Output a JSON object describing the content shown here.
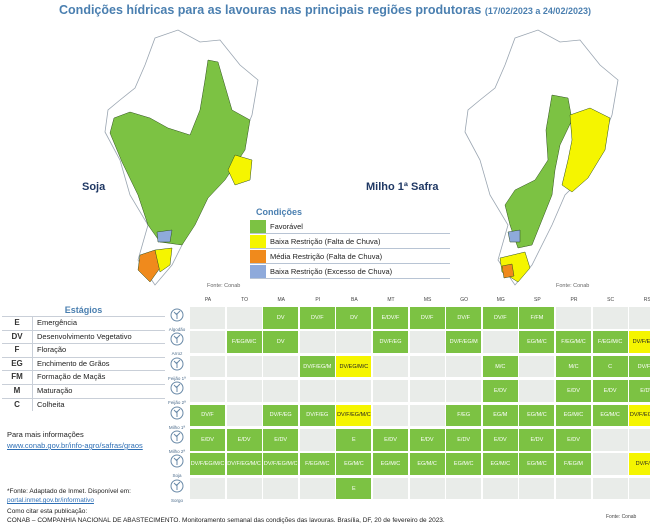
{
  "title": {
    "main": "Condições hídricas para as lavouras nas principais regiões produtoras",
    "period": "(17/02/2023 a 24/02/2023)"
  },
  "maps": {
    "left_label": "Soja",
    "right_label": "Milho 1ª Safra",
    "fonte_left": "Fonte: Conab",
    "fonte_right": "Fonte: Conab"
  },
  "legend": {
    "title": "Condições",
    "items": [
      {
        "label": "Favorável",
        "color": "#7cc243"
      },
      {
        "label": "Baixa Restrição (Falta de Chuva)",
        "color": "#f5f500"
      },
      {
        "label": "Média Restrição (Falta de Chuva)",
        "color": "#f08a1c"
      },
      {
        "label": "Baixa Restrição (Excesso de Chuva)",
        "color": "#8eaadb"
      }
    ]
  },
  "estagios": {
    "title": "Estágios",
    "items": [
      {
        "code": "E",
        "name": "Emergência"
      },
      {
        "code": "DV",
        "name": "Desenvolvimento Vegetativo"
      },
      {
        "code": "F",
        "name": "Floração"
      },
      {
        "code": "EG",
        "name": "Enchimento de Grãos"
      },
      {
        "code": "FM",
        "name": "Formação de Maçãs"
      },
      {
        "code": "M",
        "name": "Maturação"
      },
      {
        "code": "C",
        "name": "Colheita"
      }
    ]
  },
  "info": {
    "title": "Para mais informações",
    "link": "www.conab.gov.br/info-agro/safras/graos"
  },
  "notes": {
    "fonte_line": "*Fonte: Adaptado de Inmet. Disponível em:",
    "fonte_link": "portal.inmet.gov.br/informativo",
    "cite": "Como citar esta publicação:",
    "footer": "CONAB – COMPANHIA NACIONAL DE ABASTECIMENTO. Monitoramento semanal das condições das lavouras. Brasília, DF, 20 de fevereiro de 2023.",
    "fonte_bottom": "Fonte: Conab"
  },
  "table": {
    "states": [
      "PA",
      "TO",
      "MA",
      "PI",
      "BA",
      "MT",
      "MS",
      "GO",
      "MG",
      "SP",
      "PR",
      "SC",
      "RS"
    ],
    "rows": [
      {
        "crop": "Algodão",
        "cells": [
          [
            "",
            "e"
          ],
          [
            "",
            "e"
          ],
          [
            "DV",
            "g"
          ],
          [
            "DV/F",
            "g"
          ],
          [
            "DV",
            "g"
          ],
          [
            "E/DV/F",
            "g"
          ],
          [
            "DV/F",
            "g"
          ],
          [
            "DV/F",
            "g"
          ],
          [
            "DV/F",
            "g"
          ],
          [
            "F/FM",
            "g"
          ],
          [
            "",
            "e"
          ],
          [
            "",
            "e"
          ],
          [
            "",
            "e"
          ]
        ]
      },
      {
        "crop": "Arroz",
        "cells": [
          [
            "",
            "e"
          ],
          [
            "F/EG/M/C",
            "g"
          ],
          [
            "DV",
            "g"
          ],
          [
            "",
            "e"
          ],
          [
            "",
            "e"
          ],
          [
            "DV/F/EG",
            "g"
          ],
          [
            "",
            "e"
          ],
          [
            "DV/F/EG/M",
            "g"
          ],
          [
            "",
            "e"
          ],
          [
            "EG/M/C",
            "g"
          ],
          [
            "F/EG/M/C",
            "g"
          ],
          [
            "F/EG/M/C",
            "g"
          ],
          [
            "DV/F/EG/M",
            "y"
          ]
        ]
      },
      {
        "crop": "Feijão 1ª",
        "cells": [
          [
            "",
            "e"
          ],
          [
            "",
            "e"
          ],
          [
            "",
            "e"
          ],
          [
            "DV/F/EG/M",
            "g"
          ],
          [
            "DV/EG/M/C",
            "y"
          ],
          [
            "",
            "e"
          ],
          [
            "",
            "e"
          ],
          [
            "",
            "e"
          ],
          [
            "M/C",
            "g"
          ],
          [
            "",
            "e"
          ],
          [
            "M/C",
            "g"
          ],
          [
            "C",
            "g"
          ],
          [
            "DV/F/C",
            "g"
          ]
        ]
      },
      {
        "crop": "Feijão 2ª",
        "cells": [
          [
            "",
            "e"
          ],
          [
            "",
            "e"
          ],
          [
            "",
            "e"
          ],
          [
            "",
            "e"
          ],
          [
            "",
            "e"
          ],
          [
            "",
            "e"
          ],
          [
            "",
            "e"
          ],
          [
            "",
            "e"
          ],
          [
            "E/DV",
            "g"
          ],
          [
            "",
            "e"
          ],
          [
            "E/DV",
            "g"
          ],
          [
            "E/DV",
            "g"
          ],
          [
            "E/DV",
            "g"
          ]
        ]
      },
      {
        "crop": "Milho 1ª",
        "cells": [
          [
            "DV/F",
            "g"
          ],
          [
            "",
            "e"
          ],
          [
            "DV/F/EG",
            "g"
          ],
          [
            "DV/F/EG",
            "g"
          ],
          [
            "DV/F/EG/M/C",
            "y"
          ],
          [
            "",
            "e"
          ],
          [
            "",
            "e"
          ],
          [
            "F/EG",
            "g"
          ],
          [
            "EG/M",
            "g"
          ],
          [
            "EG/M/C",
            "g"
          ],
          [
            "EG/M/C",
            "g"
          ],
          [
            "EG/M/C",
            "g"
          ],
          [
            "DV/F/EG/M/C",
            "y"
          ]
        ]
      },
      {
        "crop": "Milho 2ª",
        "cells": [
          [
            "E/DV",
            "g"
          ],
          [
            "E/DV",
            "g"
          ],
          [
            "E/DV",
            "g"
          ],
          [
            "",
            "e"
          ],
          [
            "E",
            "g"
          ],
          [
            "E/DV",
            "g"
          ],
          [
            "E/DV",
            "g"
          ],
          [
            "E/DV",
            "g"
          ],
          [
            "E/DV",
            "g"
          ],
          [
            "E/DV",
            "g"
          ],
          [
            "E/DV",
            "g"
          ],
          [
            "",
            "e"
          ],
          [
            "",
            "e"
          ]
        ]
      },
      {
        "crop": "Soja",
        "cells": [
          [
            "DV/F/EG/M/C",
            "g"
          ],
          [
            "DV/F/EG/M/C",
            "g"
          ],
          [
            "DV/F/EG/M/C",
            "g"
          ],
          [
            "F/EG/M/C",
            "g"
          ],
          [
            "EG/M/C",
            "g"
          ],
          [
            "EG/M/C",
            "g"
          ],
          [
            "EG/M/C",
            "g"
          ],
          [
            "EG/M/C",
            "g"
          ],
          [
            "EG/M/C",
            "g"
          ],
          [
            "EG/M/C",
            "g"
          ],
          [
            "F/EG/M",
            "g"
          ],
          [
            "",
            "e"
          ],
          [
            "DV/F/EG",
            "y"
          ]
        ]
      },
      {
        "crop": "Sorgo",
        "cells": [
          [
            "",
            "e"
          ],
          [
            "",
            "e"
          ],
          [
            "",
            "e"
          ],
          [
            "",
            "e"
          ],
          [
            "E",
            "g"
          ],
          [
            "",
            "e"
          ],
          [
            "",
            "e"
          ],
          [
            "",
            "e"
          ],
          [
            "",
            "e"
          ],
          [
            "",
            "e"
          ],
          [
            "",
            "e"
          ],
          [
            "",
            "e"
          ],
          [
            "",
            "e"
          ]
        ]
      }
    ]
  }
}
